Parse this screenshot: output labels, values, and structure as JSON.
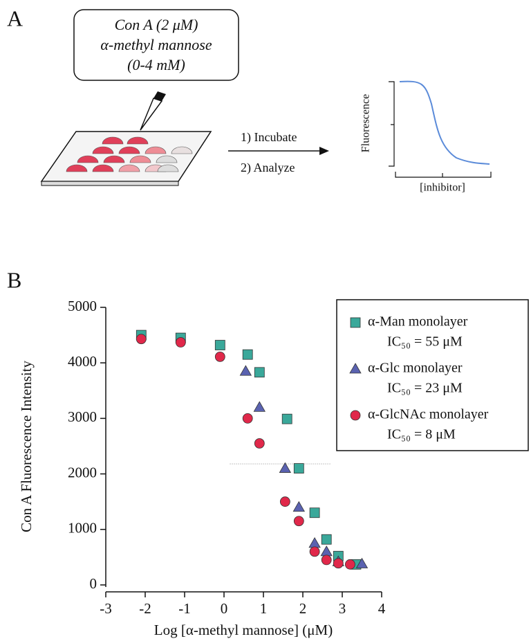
{
  "panel_labels": [
    "A",
    "B"
  ],
  "schematic": {
    "callout": [
      "Con A (2 μM)",
      "α-methyl mannose",
      "(0-4 mM)"
    ],
    "steps": [
      "1) Incubate",
      "2) Analyze"
    ],
    "inset_y_label": "Fluorescence",
    "inset_x_label": "[inhibitor]"
  },
  "chart_data": {
    "type": "scatter",
    "x_label": "Log [α-methyl mannose] (μM)",
    "y_label": "Con A Fluorescence Intensity",
    "xlim": [
      -3,
      4
    ],
    "xticks": [
      -3,
      -2,
      -1,
      0,
      1,
      2,
      3,
      4
    ],
    "ylim": [
      0,
      5000
    ],
    "yticks": [
      0,
      1000,
      2000,
      3000,
      4000,
      5000
    ],
    "reference_line": {
      "y": 2180,
      "xmin": 0.15,
      "xmax": 2.7
    },
    "series": [
      {
        "name": "α-Man monolayer",
        "ic50": "IC₅₀ = 55 μM",
        "marker": "square",
        "color": "#3aa89a",
        "x": [
          -2.1,
          -1.1,
          -0.1,
          0.6,
          0.9,
          1.6,
          1.9,
          2.3,
          2.6,
          2.9,
          3.35
        ],
        "values": [
          4500,
          4450,
          4320,
          4150,
          3830,
          2990,
          2100,
          1300,
          820,
          520,
          370
        ]
      },
      {
        "name": "α-Glc monolayer",
        "ic50": "IC₅₀ = 23 μM",
        "marker": "triangle",
        "color": "#5a62b0",
        "x": [
          0.55,
          0.9,
          1.55,
          1.9,
          2.3,
          2.6,
          2.9,
          3.5
        ],
        "values": [
          3850,
          3200,
          2100,
          1400,
          750,
          600,
          420,
          380
        ]
      },
      {
        "name": "α-GlcNAc monolayer",
        "ic50": "IC₅₀ = 8 μM",
        "marker": "circle",
        "color": "#e0284a",
        "x": [
          -2.1,
          -1.1,
          -0.1,
          0.6,
          0.9,
          1.55,
          1.9,
          2.3,
          2.6,
          2.9,
          3.2
        ],
        "values": [
          4430,
          4370,
          4110,
          3000,
          2550,
          1500,
          1150,
          600,
          450,
          390,
          370
        ]
      }
    ]
  }
}
